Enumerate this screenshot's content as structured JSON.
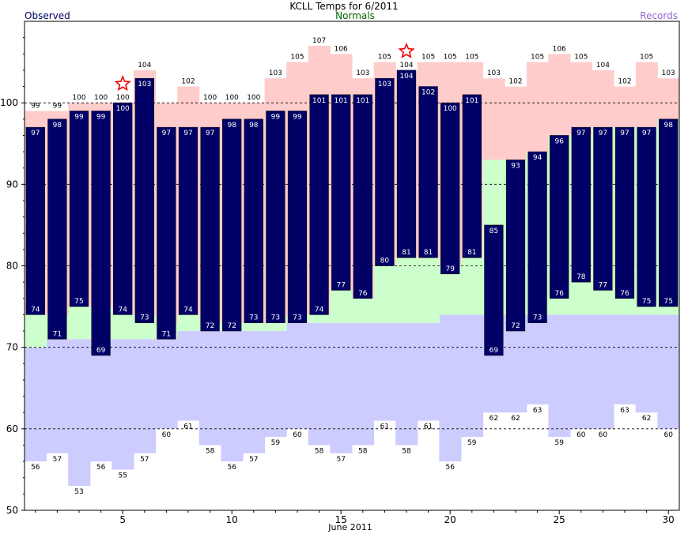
{
  "chart_data": {
    "type": "bar",
    "title": "KCLL Temps for 6/2011",
    "legend": {
      "observed": "Observed",
      "normals": "Normals",
      "records": "Records",
      "placement": "top"
    },
    "xlabel": "June 2011",
    "x_ticks": [
      "5",
      "10",
      "15",
      "20",
      "25",
      "30"
    ],
    "y_ticks": [
      "50",
      "60",
      "70",
      "80",
      "90",
      "100"
    ],
    "ylim": [
      50,
      110
    ],
    "xlim": [
      0.5,
      30.5
    ],
    "grid": "dashed horizontal at 60, 70, 80, 90, 100",
    "colors": {
      "observed": "#000066",
      "observed_label": "#000066",
      "normals": "#006600",
      "records": "#9966CC",
      "record_high_fill": "#FFCCCC",
      "normal_high_fill": "#CCFFCC",
      "record_low_fill": "#CCCCFF",
      "star": "#EE0000",
      "grid": "#000000"
    },
    "days": [
      1,
      2,
      3,
      4,
      5,
      6,
      7,
      8,
      9,
      10,
      11,
      12,
      13,
      14,
      15,
      16,
      17,
      18,
      19,
      20,
      21,
      22,
      23,
      24,
      25,
      26,
      27,
      28,
      29,
      30
    ],
    "series": [
      {
        "name": "Observed",
        "key": "obs_high",
        "values": [
          97,
          98,
          99,
          99,
          100,
          103,
          97,
          97,
          97,
          98,
          98,
          99,
          99,
          101,
          101,
          101,
          103,
          104,
          102,
          100,
          101,
          85,
          93,
          94,
          96,
          97,
          97,
          97,
          97,
          98
        ]
      },
      {
        "name": "Observed",
        "key": "obs_low",
        "values": [
          74,
          71,
          75,
          69,
          74,
          73,
          71,
          74,
          72,
          72,
          73,
          73,
          73,
          74,
          77,
          76,
          80,
          81,
          81,
          79,
          81,
          69,
          72,
          73,
          76,
          78,
          77,
          76,
          75,
          75
        ]
      },
      {
        "name": "Records",
        "key": "record_high",
        "values": [
          99,
          99,
          100,
          100,
          100,
          104,
          100,
          102,
          100,
          100,
          100,
          103,
          105,
          107,
          106,
          103,
          105,
          104,
          105,
          105,
          105,
          103,
          102,
          105,
          106,
          105,
          104,
          102,
          105,
          103
        ]
      },
      {
        "name": "Records",
        "key": "record_low",
        "values": [
          56,
          57,
          53,
          56,
          55,
          57,
          60,
          61,
          58,
          56,
          57,
          59,
          60,
          58,
          57,
          58,
          61,
          58,
          61,
          56,
          59,
          62,
          62,
          63,
          59,
          60,
          60,
          63,
          62,
          60
        ]
      },
      {
        "name": "Normals",
        "key": "normal_high",
        "values": [
          74,
          74,
          75,
          75,
          74,
          74,
          73,
          74,
          73,
          73,
          73,
          73,
          74,
          74,
          77,
          76,
          80,
          81,
          81,
          80,
          81,
          93,
          93,
          94,
          96,
          96,
          97,
          97,
          97,
          98
        ]
      },
      {
        "name": "Normals",
        "key": "normal_low",
        "values": [
          70,
          71,
          71,
          71,
          71,
          71,
          71,
          72,
          72,
          72,
          72,
          72,
          73,
          73,
          73,
          73,
          73,
          73,
          73,
          74,
          74,
          74,
          74,
          74,
          74,
          74,
          74,
          74,
          74,
          74
        ]
      }
    ],
    "record_high_labels": [
      "99",
      "99",
      "100",
      "100",
      "100",
      "104",
      "",
      "102",
      "100",
      "100",
      "100",
      "103",
      "105",
      "107",
      "106",
      "103",
      "105",
      "104",
      "105",
      "105",
      "105",
      "103",
      "102",
      "105",
      "106",
      "105",
      "104",
      "102",
      "105",
      "103"
    ],
    "record_low_labels": [
      "56",
      "57",
      "53",
      "56",
      "55",
      "57",
      "60",
      "61",
      "58",
      "56",
      "57",
      "59",
      "60",
      "58",
      "57",
      "58",
      "61",
      "58",
      "61",
      "56",
      "59",
      "62",
      "62",
      "63",
      "59",
      "60",
      "60",
      "63",
      "62",
      "60"
    ],
    "stars": [
      5,
      18
    ]
  }
}
